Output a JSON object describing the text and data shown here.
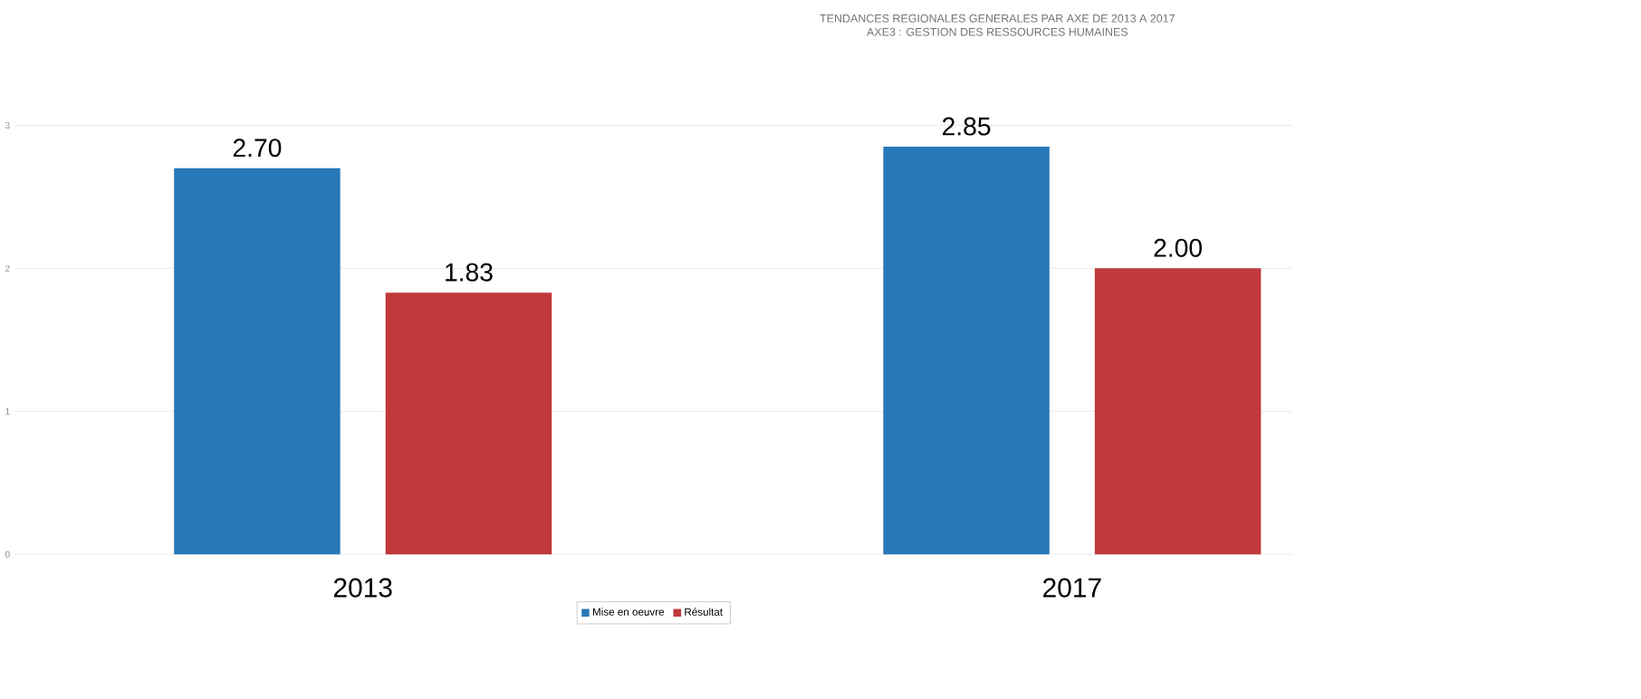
{
  "chart_data": {
    "type": "bar",
    "title": "TENDANCES REGIONALES GENERALES PAR AXE DE 2013 A 2017",
    "subtitle": "AXE3 : GESTION DES RESSOURCES HUMAINES",
    "categories": [
      "2013",
      "2017"
    ],
    "series": [
      {
        "name": "Mise en oeuvre",
        "color": "#2878b8",
        "values": [
          2.7,
          2.85
        ],
        "value_labels": [
          "2.70",
          "2.85"
        ]
      },
      {
        "name": "Résultat",
        "color": "#c0393b",
        "values": [
          1.83,
          2.0
        ],
        "value_labels": [
          "1.83",
          "2.00"
        ]
      }
    ],
    "ylim": [
      0,
      3
    ],
    "yticks": [
      0,
      1,
      2,
      3
    ],
    "grid": "y",
    "legend": "bottom"
  }
}
